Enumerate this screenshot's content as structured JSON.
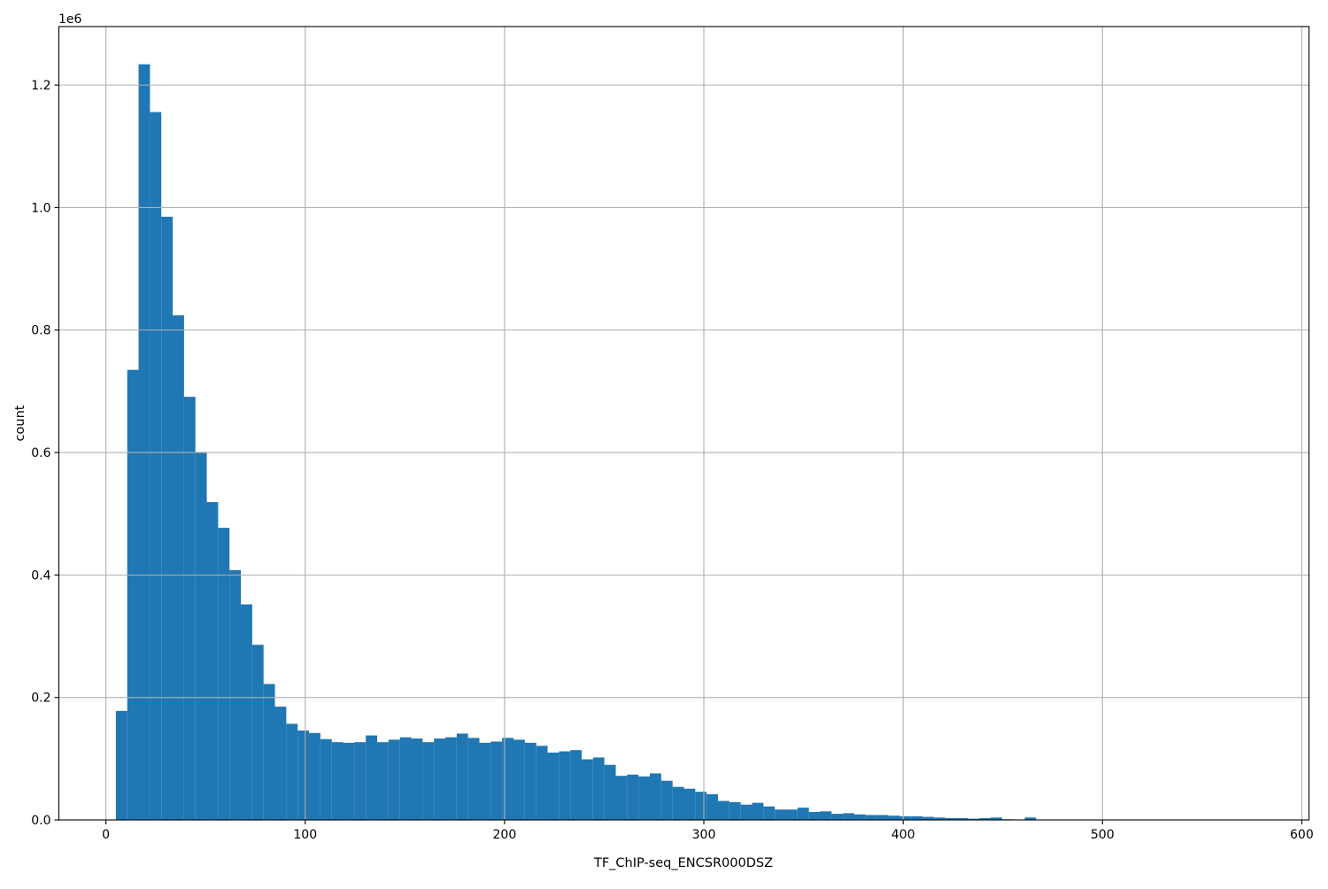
{
  "chart_data": {
    "type": "bar",
    "subtype": "histogram",
    "title": "",
    "xlabel": "TF_ChIP-seq_ENCSR000DSZ",
    "ylabel": "count",
    "y_offset_text": "1e6",
    "legend": null,
    "grid": true,
    "grid_on_top_of_bars": true,
    "bar_color": "#1f77b4",
    "grid_color": "#b0b0b0",
    "spine_color": "#000000",
    "background_color": "#ffffff",
    "xlim": [
      -23.6,
      603.6
    ],
    "ylim_1e6": [
      0,
      1.2956
    ],
    "bin_start": 5,
    "bin_width": 5.7,
    "counts_unit": "1e6",
    "counts_1e6": [
      0.178,
      0.735,
      1.234,
      1.156,
      0.985,
      0.824,
      0.691,
      0.601,
      0.519,
      0.477,
      0.408,
      0.352,
      0.286,
      0.222,
      0.185,
      0.157,
      0.146,
      0.142,
      0.132,
      0.127,
      0.126,
      0.127,
      0.138,
      0.127,
      0.131,
      0.135,
      0.133,
      0.127,
      0.133,
      0.135,
      0.141,
      0.134,
      0.126,
      0.128,
      0.134,
      0.131,
      0.126,
      0.121,
      0.11,
      0.112,
      0.114,
      0.099,
      0.102,
      0.09,
      0.072,
      0.074,
      0.071,
      0.076,
      0.064,
      0.054,
      0.051,
      0.046,
      0.042,
      0.031,
      0.029,
      0.025,
      0.028,
      0.022,
      0.017,
      0.017,
      0.02,
      0.013,
      0.014,
      0.01,
      0.011,
      0.009,
      0.008,
      0.008,
      0.007,
      0.006,
      0.006,
      0.005,
      0.004,
      0.003,
      0.003,
      0.002,
      0.003,
      0.004,
      0.001,
      0.0,
      0.004,
      0.0,
      0.0,
      0.0,
      0.0,
      0.0,
      0.0,
      0.0,
      0.0,
      0.0,
      0.0,
      0.0,
      0.0,
      0.0,
      0.0,
      0.0,
      0.0,
      0.0,
      0.0,
      0.0005
    ],
    "xtick_values": [
      0,
      100,
      200,
      300,
      400,
      500,
      600
    ],
    "xtick_labels": [
      "0",
      "100",
      "200",
      "300",
      "400",
      "500",
      "600"
    ],
    "ytick_values_1e6": [
      0.0,
      0.2,
      0.4,
      0.6,
      0.8,
      1.0,
      1.2
    ],
    "ytick_labels": [
      "0.0",
      "0.2",
      "0.4",
      "0.6",
      "0.8",
      "1.0",
      "1.2"
    ]
  }
}
